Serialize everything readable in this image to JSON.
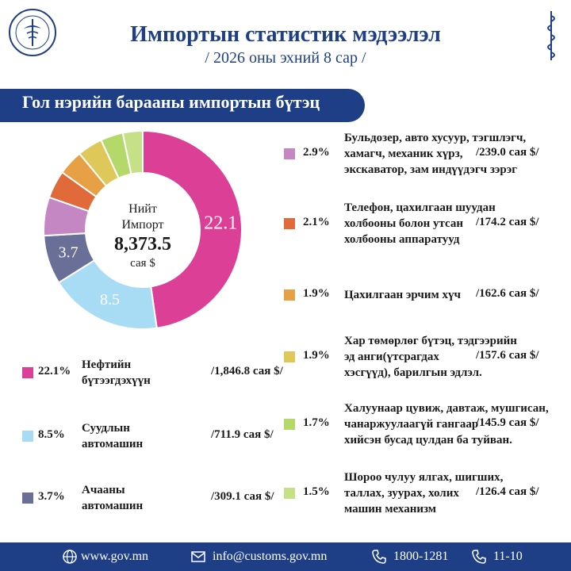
{
  "header": {
    "title": "Импортын статистик мэдээлэл",
    "subtitle": "/ 2026 оны эхний 8 сар /"
  },
  "banner": {
    "text": "Гол нэрийн барааны импортын бүтэц"
  },
  "center": {
    "line1": "Нийт",
    "line2": "Импорт",
    "value": "8,373.5",
    "unit": "сая $"
  },
  "chart_data": {
    "type": "pie",
    "series": [
      {
        "name": "Нефтийн бүтээгдэхүүн",
        "percent": 22.1,
        "label": "22.1",
        "value_text": "/1,846.8 сая $/",
        "color": "#dc3f96"
      },
      {
        "name": "Суудлын автомашин",
        "percent": 8.5,
        "label": "8.5",
        "value_text": "/711.9 сая $/",
        "color": "#a7dcf4"
      },
      {
        "name": "Ачааны автомашин",
        "percent": 3.7,
        "label": "3.7",
        "value_text": "/309.1 сая $/",
        "color": "#6a6f98"
      },
      {
        "name": "Бульдозер, авто хусуур, тэгшлэгч, хамагч, механик хүрз, экскаватор, зам индүүдэгч зэрэг",
        "percent": 2.9,
        "label": "",
        "value_text": "/239.0 сая $/",
        "color": "#c587c4"
      },
      {
        "name": "Телефон, цахилгаан шуудан холбооны болон утсан холбооны аппаратууд",
        "percent": 2.1,
        "label": "",
        "value_text": "/174.2 сая $/",
        "color": "#e06a3a"
      },
      {
        "name": "Цахилгаан эрчим хүч",
        "percent": 1.9,
        "label": "",
        "value_text": "/162.6 сая $/",
        "color": "#e8a046"
      },
      {
        "name": "Хар төмөрлөг бүтэц, тэдгээрийн эд анги(үтсрагдах хэсгүүд), барилгын эдлэл.",
        "percent": 1.9,
        "label": "",
        "value_text": "/157.6 сая $/",
        "color": "#dfc85a"
      },
      {
        "name": "Халуунаар цувиж, давтаж, мушгисан, чанаржуулаагүй гангаар хийсэн бусад цулдан ба туйван.",
        "percent": 1.7,
        "label": "",
        "value_text": "/145.9 сая $/",
        "color": "#b4d86a"
      },
      {
        "name": "Шороо чулуу ялгах, шигших, таллах, зуурах, холих машин механизм",
        "percent": 1.5,
        "label": "",
        "value_text": "/126.4 сая $/",
        "color": "#c5e086"
      }
    ]
  },
  "legend_left": [
    {
      "pct": "22.1%",
      "lines": [
        "Нефтийн",
        "бүтээгдэхүүн"
      ],
      "value": "/1,846.8 сая $/"
    },
    {
      "pct": "8.5%",
      "lines": [
        "Суудлын",
        "автомашин"
      ],
      "value": "/711.9 сая $/"
    },
    {
      "pct": "3.7%",
      "lines": [
        "Ачааны",
        "автомашин"
      ],
      "value": "/309.1 сая $/"
    }
  ],
  "legend_right": [
    {
      "pct": "2.9%",
      "lines": [
        "Бульдозер, авто хусуур, тэгшлэгч,",
        "хамагч, механик хүрз,",
        "экскаватор, зам индүүдэгч зэрэг"
      ],
      "value": "/239.0 сая $/"
    },
    {
      "pct": "2.1%",
      "lines": [
        "Телефон, цахилгаан шуудан",
        "холбооны болон утсан",
        "холбооны аппаратууд"
      ],
      "value": "/174.2 сая $/"
    },
    {
      "pct": "1.9%",
      "lines": [
        "Цахилгаан эрчим хүч"
      ],
      "value": "/162.6 сая $/"
    },
    {
      "pct": "1.9%",
      "lines": [
        "Хар төмөрлөг бүтэц, тэдгээрийн",
        "эд анги(үтсрагдах",
        "хэсгүүд), барилгын эдлэл."
      ],
      "value": "/157.6 сая $/"
    },
    {
      "pct": "1.7%",
      "lines": [
        "Халуунаар цувиж, давтаж, мушгисан,",
        "чанаржуулаагүй гангаар",
        "хийсэн бусад цулдан ба туйван."
      ],
      "value": "/145.9 сая $/"
    },
    {
      "pct": "1.5%",
      "lines": [
        "Шороо чулуу ялгах, шигших,",
        "таллах, зуурах, холих",
        "машин механизм"
      ],
      "value": "/126.4 сая $/"
    }
  ],
  "footer": {
    "web": "www.gov.mn",
    "email": "info@customs.gov.mn",
    "phone1": "1800-1281",
    "phone2": "11-10"
  }
}
